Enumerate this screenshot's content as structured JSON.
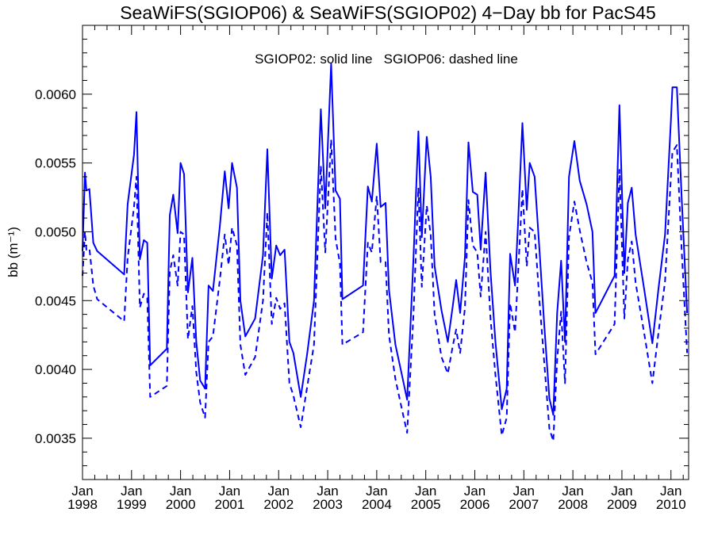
{
  "chart_data": {
    "type": "line",
    "title": "SeaWiFS(SGIOP06) & SeaWiFS(SGIOP02) 4−Day bb for PacS45",
    "annotation": "SGIOP02: solid line   SGIOP06: dashed line",
    "ylabel": "bb (m⁻¹)",
    "ylim": [
      0.0032,
      0.0065
    ],
    "xlim": [
      1998.0,
      2010.36
    ],
    "yticks": [
      {
        "value": 0.0035,
        "label": "0.0035"
      },
      {
        "value": 0.004,
        "label": "0.0040"
      },
      {
        "value": 0.0045,
        "label": "0.0045"
      },
      {
        "value": 0.005,
        "label": "0.0050"
      },
      {
        "value": 0.0055,
        "label": "0.0055"
      },
      {
        "value": 0.006,
        "label": "0.0060"
      }
    ],
    "xticks": [
      {
        "value": 1998,
        "month": "Jan",
        "year": "1998"
      },
      {
        "value": 1999,
        "month": "Jan",
        "year": "1999"
      },
      {
        "value": 2000,
        "month": "Jan",
        "year": "2000"
      },
      {
        "value": 2001,
        "month": "Jan",
        "year": "2001"
      },
      {
        "value": 2002,
        "month": "Jan",
        "year": "2002"
      },
      {
        "value": 2003,
        "month": "Jan",
        "year": "2003"
      },
      {
        "value": 2004,
        "month": "Jan",
        "year": "2004"
      },
      {
        "value": 2005,
        "month": "Jan",
        "year": "2005"
      },
      {
        "value": 2006,
        "month": "Jan",
        "year": "2006"
      },
      {
        "value": 2007,
        "month": "Jan",
        "year": "2007"
      },
      {
        "value": 2008,
        "month": "Jan",
        "year": "2008"
      },
      {
        "value": 2009,
        "month": "Jan",
        "year": "2009"
      },
      {
        "value": 2010,
        "month": "Jan",
        "year": "2010"
      }
    ],
    "series": [
      {
        "style": "solid",
        "color": "#0000ff",
        "points": [
          [
            1998.0,
            0.00486
          ],
          [
            1998.05,
            0.00543
          ],
          [
            1998.08,
            0.0053
          ],
          [
            1998.14,
            0.00531
          ],
          [
            1998.22,
            0.00492
          ],
          [
            1998.3,
            0.00486
          ],
          [
            1998.85,
            0.00469
          ],
          [
            1998.92,
            0.0052
          ],
          [
            1999.05,
            0.00556
          ],
          [
            1999.1,
            0.00587
          ],
          [
            1999.17,
            0.0048
          ],
          [
            1999.25,
            0.00494
          ],
          [
            1999.32,
            0.00492
          ],
          [
            1999.38,
            0.00403
          ],
          [
            1999.72,
            0.00415
          ],
          [
            1999.78,
            0.00512
          ],
          [
            1999.85,
            0.00527
          ],
          [
            1999.94,
            0.00499
          ],
          [
            2000.0,
            0.0055
          ],
          [
            2000.07,
            0.00542
          ],
          [
            2000.15,
            0.00456
          ],
          [
            2000.24,
            0.00481
          ],
          [
            2000.32,
            0.0042
          ],
          [
            2000.4,
            0.00392
          ],
          [
            2000.5,
            0.00386
          ],
          [
            2000.57,
            0.00461
          ],
          [
            2000.66,
            0.00457
          ],
          [
            2000.8,
            0.00504
          ],
          [
            2000.9,
            0.00544
          ],
          [
            2000.98,
            0.00517
          ],
          [
            2001.05,
            0.0055
          ],
          [
            2001.15,
            0.00532
          ],
          [
            2001.22,
            0.0045
          ],
          [
            2001.32,
            0.00424
          ],
          [
            2001.52,
            0.00437
          ],
          [
            2001.68,
            0.00483
          ],
          [
            2001.77,
            0.0056
          ],
          [
            2001.86,
            0.00466
          ],
          [
            2001.95,
            0.0049
          ],
          [
            2002.03,
            0.00483
          ],
          [
            2002.12,
            0.00487
          ],
          [
            2002.22,
            0.0042
          ],
          [
            2002.3,
            0.00412
          ],
          [
            2002.45,
            0.0038
          ],
          [
            2002.58,
            0.00411
          ],
          [
            2002.72,
            0.0045
          ],
          [
            2002.86,
            0.00589
          ],
          [
            2002.95,
            0.00517
          ],
          [
            2003.07,
            0.00622
          ],
          [
            2003.16,
            0.0053
          ],
          [
            2003.25,
            0.00524
          ],
          [
            2003.3,
            0.00451
          ],
          [
            2003.72,
            0.00461
          ],
          [
            2003.82,
            0.00533
          ],
          [
            2003.9,
            0.00522
          ],
          [
            2004.0,
            0.00564
          ],
          [
            2004.08,
            0.00518
          ],
          [
            2004.18,
            0.00521
          ],
          [
            2004.25,
            0.00458
          ],
          [
            2004.38,
            0.00418
          ],
          [
            2004.52,
            0.00395
          ],
          [
            2004.62,
            0.00378
          ],
          [
            2004.75,
            0.00481
          ],
          [
            2004.85,
            0.00573
          ],
          [
            2004.92,
            0.00496
          ],
          [
            2005.02,
            0.00569
          ],
          [
            2005.1,
            0.0054
          ],
          [
            2005.18,
            0.00475
          ],
          [
            2005.32,
            0.00443
          ],
          [
            2005.45,
            0.0042
          ],
          [
            2005.55,
            0.00446
          ],
          [
            2005.62,
            0.00465
          ],
          [
            2005.7,
            0.00441
          ],
          [
            2005.8,
            0.00482
          ],
          [
            2005.87,
            0.00565
          ],
          [
            2005.96,
            0.00529
          ],
          [
            2006.05,
            0.00527
          ],
          [
            2006.12,
            0.00487
          ],
          [
            2006.22,
            0.00543
          ],
          [
            2006.32,
            0.00471
          ],
          [
            2006.42,
            0.0042
          ],
          [
            2006.55,
            0.00371
          ],
          [
            2006.65,
            0.00386
          ],
          [
            2006.72,
            0.00484
          ],
          [
            2006.82,
            0.00461
          ],
          [
            2006.88,
            0.00505
          ],
          [
            2006.97,
            0.00579
          ],
          [
            2007.06,
            0.00516
          ],
          [
            2007.12,
            0.0055
          ],
          [
            2007.22,
            0.0054
          ],
          [
            2007.32,
            0.00486
          ],
          [
            2007.42,
            0.0043
          ],
          [
            2007.52,
            0.00379
          ],
          [
            2007.6,
            0.00367
          ],
          [
            2007.68,
            0.00441
          ],
          [
            2007.76,
            0.00479
          ],
          [
            2007.84,
            0.0042
          ],
          [
            2007.92,
            0.0054
          ],
          [
            2008.03,
            0.00566
          ],
          [
            2008.14,
            0.00537
          ],
          [
            2008.28,
            0.0052
          ],
          [
            2008.4,
            0.005
          ],
          [
            2008.46,
            0.00441
          ],
          [
            2008.85,
            0.00468
          ],
          [
            2008.95,
            0.00592
          ],
          [
            2009.05,
            0.0047
          ],
          [
            2009.12,
            0.00521
          ],
          [
            2009.2,
            0.00532
          ],
          [
            2009.28,
            0.00498
          ],
          [
            2009.45,
            0.00459
          ],
          [
            2009.62,
            0.00419
          ],
          [
            2009.75,
            0.0046
          ],
          [
            2009.88,
            0.00498
          ],
          [
            2010.0,
            0.00581
          ],
          [
            2010.03,
            0.00605
          ],
          [
            2010.12,
            0.00605
          ],
          [
            2010.22,
            0.00524
          ],
          [
            2010.33,
            0.00441
          ]
        ]
      },
      {
        "style": "dashed",
        "color": "#0000ff",
        "points": [
          [
            1998.0,
            0.00468
          ],
          [
            1998.05,
            0.005
          ],
          [
            1998.08,
            0.00487
          ],
          [
            1998.14,
            0.00488
          ],
          [
            1998.22,
            0.00461
          ],
          [
            1998.3,
            0.00451
          ],
          [
            1998.85,
            0.00435
          ],
          [
            1998.92,
            0.00481
          ],
          [
            1999.05,
            0.00518
          ],
          [
            1999.1,
            0.0054
          ],
          [
            1999.17,
            0.00445
          ],
          [
            1999.25,
            0.00455
          ],
          [
            1999.32,
            0.00452
          ],
          [
            1999.38,
            0.0038
          ],
          [
            1999.72,
            0.00388
          ],
          [
            1999.78,
            0.00471
          ],
          [
            1999.85,
            0.00483
          ],
          [
            1999.94,
            0.00461
          ],
          [
            2000.0,
            0.005
          ],
          [
            2000.07,
            0.00498
          ],
          [
            2000.15,
            0.00422
          ],
          [
            2000.24,
            0.00446
          ],
          [
            2000.32,
            0.00398
          ],
          [
            2000.4,
            0.00376
          ],
          [
            2000.5,
            0.00365
          ],
          [
            2000.57,
            0.0042
          ],
          [
            2000.66,
            0.00424
          ],
          [
            2000.8,
            0.00465
          ],
          [
            2000.9,
            0.00498
          ],
          [
            2000.98,
            0.00476
          ],
          [
            2001.05,
            0.00503
          ],
          [
            2001.15,
            0.0049
          ],
          [
            2001.22,
            0.00418
          ],
          [
            2001.32,
            0.00396
          ],
          [
            2001.52,
            0.00409
          ],
          [
            2001.68,
            0.0045
          ],
          [
            2001.77,
            0.00514
          ],
          [
            2001.86,
            0.00433
          ],
          [
            2001.95,
            0.00452
          ],
          [
            2002.03,
            0.00444
          ],
          [
            2002.12,
            0.00448
          ],
          [
            2002.22,
            0.0039
          ],
          [
            2002.3,
            0.00381
          ],
          [
            2002.45,
            0.00358
          ],
          [
            2002.58,
            0.00387
          ],
          [
            2002.72,
            0.00418
          ],
          [
            2002.86,
            0.00548
          ],
          [
            2002.95,
            0.00485
          ],
          [
            2003.07,
            0.00567
          ],
          [
            2003.16,
            0.00495
          ],
          [
            2003.25,
            0.00477
          ],
          [
            2003.3,
            0.00418
          ],
          [
            2003.72,
            0.00427
          ],
          [
            2003.82,
            0.00492
          ],
          [
            2003.9,
            0.00485
          ],
          [
            2004.0,
            0.00526
          ],
          [
            2004.08,
            0.00478
          ],
          [
            2004.18,
            0.00478
          ],
          [
            2004.25,
            0.00425
          ],
          [
            2004.38,
            0.00393
          ],
          [
            2004.52,
            0.0037
          ],
          [
            2004.62,
            0.00354
          ],
          [
            2004.75,
            0.0044
          ],
          [
            2004.85,
            0.00532
          ],
          [
            2004.92,
            0.0046
          ],
          [
            2005.02,
            0.00519
          ],
          [
            2005.1,
            0.00498
          ],
          [
            2005.18,
            0.0044
          ],
          [
            2005.32,
            0.00409
          ],
          [
            2005.45,
            0.00397
          ],
          [
            2005.55,
            0.00417
          ],
          [
            2005.62,
            0.00429
          ],
          [
            2005.7,
            0.00412
          ],
          [
            2005.8,
            0.00445
          ],
          [
            2005.87,
            0.00523
          ],
          [
            2005.96,
            0.0049
          ],
          [
            2006.05,
            0.00485
          ],
          [
            2006.12,
            0.00453
          ],
          [
            2006.22,
            0.005
          ],
          [
            2006.32,
            0.00437
          ],
          [
            2006.42,
            0.00396
          ],
          [
            2006.55,
            0.00352
          ],
          [
            2006.65,
            0.00365
          ],
          [
            2006.72,
            0.00448
          ],
          [
            2006.82,
            0.00427
          ],
          [
            2006.88,
            0.00468
          ],
          [
            2006.97,
            0.00531
          ],
          [
            2007.06,
            0.00475
          ],
          [
            2007.12,
            0.00503
          ],
          [
            2007.22,
            0.005
          ],
          [
            2007.32,
            0.00449
          ],
          [
            2007.42,
            0.00403
          ],
          [
            2007.52,
            0.00357
          ],
          [
            2007.6,
            0.00348
          ],
          [
            2007.68,
            0.00407
          ],
          [
            2007.76,
            0.00442
          ],
          [
            2007.84,
            0.0039
          ],
          [
            2007.92,
            0.00496
          ],
          [
            2008.03,
            0.00522
          ],
          [
            2008.14,
            0.00501
          ],
          [
            2008.28,
            0.00478
          ],
          [
            2008.4,
            0.00463
          ],
          [
            2008.46,
            0.00411
          ],
          [
            2008.85,
            0.00433
          ],
          [
            2008.95,
            0.00545
          ],
          [
            2009.05,
            0.00437
          ],
          [
            2009.12,
            0.0048
          ],
          [
            2009.2,
            0.00493
          ],
          [
            2009.28,
            0.00463
          ],
          [
            2009.45,
            0.00427
          ],
          [
            2009.62,
            0.0039
          ],
          [
            2009.75,
            0.00428
          ],
          [
            2009.88,
            0.00464
          ],
          [
            2010.0,
            0.0054
          ],
          [
            2010.03,
            0.00558
          ],
          [
            2010.12,
            0.00563
          ],
          [
            2010.22,
            0.00486
          ],
          [
            2010.33,
            0.00412
          ]
        ]
      }
    ]
  }
}
